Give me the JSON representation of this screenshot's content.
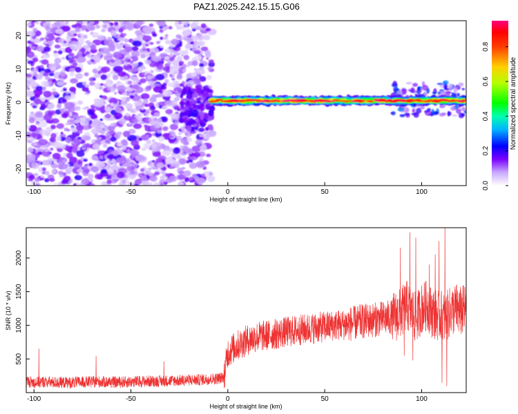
{
  "title": "PAZ1.2025.242.15.15.G06",
  "chart_data": [
    {
      "type": "heatmap",
      "xlabel": "Height of straight line (km)",
      "ylabel": "Frequency (Hz)",
      "xlim": [
        -104,
        123
      ],
      "ylim": [
        -25,
        24.5
      ],
      "xticks": [
        -100,
        -50,
        0,
        50,
        100
      ],
      "yticks": [
        -20,
        -10,
        0,
        10,
        20
      ],
      "colorbar": {
        "label": "Normalized spectral amplitude",
        "range": [
          0,
          0.95
        ],
        "ticks": [
          0.0,
          0.2,
          0.4,
          0.6,
          0.8
        ],
        "tick_labels": [
          "0.0",
          "0.2",
          "0.4",
          "0.6",
          "0.8"
        ]
      },
      "regions": [
        {
          "name": "noise",
          "x": [
            -104,
            -8
          ],
          "y": [
            -25,
            24.5
          ],
          "amplitude": [
            0.0,
            0.2
          ]
        },
        {
          "name": "transition",
          "x": [
            -24,
            -8
          ],
          "y": [
            -8,
            4
          ],
          "amplitude": [
            0.1,
            0.2
          ]
        },
        {
          "name": "signal-band",
          "x": [
            -8,
            123
          ],
          "y": [
            -1,
            2
          ],
          "center_hz": 0.5,
          "amplitude": [
            0.2,
            0.95
          ]
        },
        {
          "name": "band-widening",
          "x": [
            85,
            123
          ],
          "y": [
            -4,
            6
          ],
          "amplitude": [
            0.05,
            0.3
          ]
        }
      ]
    },
    {
      "type": "line",
      "xlabel": "Height of straight line (km)",
      "ylabel": "SNR (10 * v/v)",
      "xlim": [
        -104,
        123
      ],
      "ylim": [
        0,
        2450
      ],
      "xticks": [
        -100,
        -50,
        0,
        50,
        100
      ],
      "yticks": [
        500,
        1000,
        1500,
        2000
      ],
      "color": "#ee3333",
      "series": {
        "name": "SNR",
        "x": [
          -104,
          -100,
          -95,
          -90,
          -85,
          -80,
          -75,
          -70,
          -65,
          -60,
          -55,
          -50,
          -45,
          -40,
          -35,
          -30,
          -25,
          -20,
          -15,
          -10,
          -5,
          -2,
          0,
          5,
          10,
          15,
          20,
          25,
          30,
          35,
          40,
          45,
          50,
          55,
          60,
          65,
          70,
          75,
          80,
          85,
          88,
          90,
          92,
          95,
          97,
          100,
          103,
          105,
          108,
          110,
          112,
          115,
          118,
          120,
          123
        ],
        "y": [
          170,
          150,
          160,
          150,
          150,
          150,
          155,
          160,
          160,
          155,
          155,
          160,
          165,
          170,
          170,
          175,
          180,
          185,
          190,
          200,
          210,
          230,
          600,
          700,
          780,
          830,
          850,
          870,
          900,
          920,
          940,
          960,
          980,
          1000,
          1010,
          1030,
          1060,
          1080,
          1100,
          1120,
          1150,
          1200,
          1300,
          1200,
          1100,
          1250,
          1300,
          1200,
          1150,
          1150,
          1100,
          1200,
          1250,
          1200,
          1250
        ]
      },
      "spikes": [
        {
          "x": -97.5,
          "y": 650
        },
        {
          "x": -68,
          "y": 540
        },
        {
          "x": -33,
          "y": 460
        },
        {
          "x": 89,
          "y": 2150
        },
        {
          "x": 91,
          "y": 550
        },
        {
          "x": 94,
          "y": 2380
        },
        {
          "x": 95.5,
          "y": 480
        },
        {
          "x": 97,
          "y": 2300
        },
        {
          "x": 104,
          "y": 1900
        },
        {
          "x": 107,
          "y": 2050
        },
        {
          "x": 109,
          "y": 2250
        },
        {
          "x": 110.5,
          "y": 150
        },
        {
          "x": 112,
          "y": 2450
        },
        {
          "x": 113,
          "y": 100
        }
      ]
    }
  ]
}
